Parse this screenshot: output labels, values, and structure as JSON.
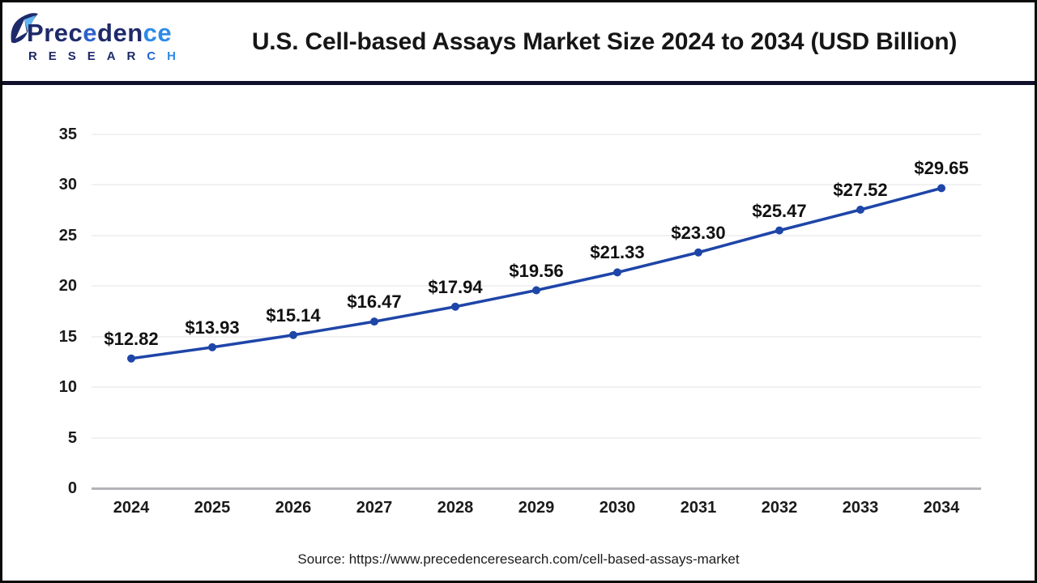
{
  "header": {
    "logo": {
      "icon": "precedence-leaf-logo-icon",
      "brand_letters": [
        [
          "P",
          "#1e2a6a"
        ],
        [
          "r",
          "#1e2a6a"
        ],
        [
          "e",
          "#1e2a6a"
        ],
        [
          "c",
          "#1e2a6a"
        ],
        [
          "e",
          "#2f62c9"
        ],
        [
          "d",
          "#1e2a6a"
        ],
        [
          "e",
          "#1e2a6a"
        ],
        [
          "n",
          "#1e2a6a"
        ],
        [
          "c",
          "#2e8ae8"
        ],
        [
          "e",
          "#2e8ae8"
        ]
      ],
      "subtitle_letters": [
        [
          "R",
          "#1e2a6a"
        ],
        [
          "E",
          "#1e2a6a"
        ],
        [
          "S",
          "#1e2a6a"
        ],
        [
          "E",
          "#1e2a6a"
        ],
        [
          "A",
          "#1e2a6a"
        ],
        [
          "R",
          "#1e2a6a"
        ],
        [
          "C",
          "#2565cf"
        ],
        [
          "H",
          "#2e8ae8"
        ]
      ]
    }
  },
  "chart_data": {
    "type": "line",
    "title": "U.S. Cell-based Assays Market Size 2024 to 2034 (USD Billion)",
    "categories": [
      "2024",
      "2025",
      "2026",
      "2027",
      "2028",
      "2029",
      "2030",
      "2031",
      "2032",
      "2033",
      "2034"
    ],
    "values": [
      12.82,
      13.93,
      15.14,
      16.47,
      17.94,
      19.56,
      21.33,
      23.3,
      25.47,
      27.52,
      29.65
    ],
    "point_labels": [
      "$12.82",
      "$13.93",
      "$15.14",
      "$16.47",
      "$17.94",
      "$19.56",
      "$21.33",
      "$23.30",
      "$25.47",
      "$27.52",
      "$29.65"
    ],
    "xlabel": "",
    "ylabel": "",
    "ylim": [
      0,
      35
    ],
    "yticks": [
      0,
      5,
      10,
      15,
      20,
      25,
      30,
      35
    ],
    "grid": true,
    "legend": false,
    "line_color": "#1e45a8",
    "marker": "circle"
  },
  "colors": {
    "header_rule": "#10102a",
    "gridline": "#f1f1f3",
    "axis_line": "#b3b4b8",
    "title_text": "#161616"
  },
  "footer": {
    "source": "Source: https://www.precedenceresearch.com/cell-based-assays-market"
  }
}
